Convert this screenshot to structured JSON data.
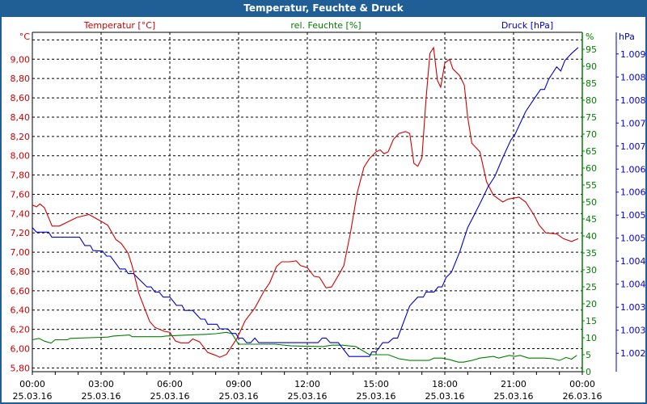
{
  "window": {
    "title": "Temperatur, Feuchte & Druck"
  },
  "colors": {
    "temperature": "#d00000",
    "humidity": "#008000",
    "pressure": "#0000d0",
    "titlebar": "#1f5f96"
  },
  "chart_data": {
    "type": "line",
    "title": "Temperatur, Feuchte & Druck",
    "xlabel": "",
    "x_unit": "hours since 25.03.16 00:00",
    "xlim": [
      0,
      24
    ],
    "x_ticks": [
      {
        "x": 0,
        "time": "00:00",
        "date": "25.03.16"
      },
      {
        "x": 3,
        "time": "03:00",
        "date": "25.03.16"
      },
      {
        "x": 6,
        "time": "06:00",
        "date": "25.03.16"
      },
      {
        "x": 9,
        "time": "09:00",
        "date": "25.03.16"
      },
      {
        "x": 12,
        "time": "12:00",
        "date": "25.03.16"
      },
      {
        "x": 15,
        "time": "15:00",
        "date": "25.03.16"
      },
      {
        "x": 18,
        "time": "18:00",
        "date": "25.03.16"
      },
      {
        "x": 21,
        "time": "21:00",
        "date": "25.03.16"
      },
      {
        "x": 24,
        "time": "00:00",
        "date": "26.03.16"
      }
    ],
    "grid": true,
    "axes": {
      "temperature": {
        "label": "°C",
        "legend": "Temperatur [°C]",
        "ylim": [
          5.761,
          9.279
        ],
        "ticks": [
          {
            "v": 5.8,
            "t": "5,80"
          },
          {
            "v": 6.0,
            "t": "6,00"
          },
          {
            "v": 6.2,
            "t": "6,20"
          },
          {
            "v": 6.4,
            "t": "6,40"
          },
          {
            "v": 6.6,
            "t": "6,60"
          },
          {
            "v": 6.8,
            "t": "6,80"
          },
          {
            "v": 7.0,
            "t": "7,00"
          },
          {
            "v": 7.2,
            "t": "7,20"
          },
          {
            "v": 7.4,
            "t": "7,40"
          },
          {
            "v": 7.6,
            "t": "7,60"
          },
          {
            "v": 7.8,
            "t": "7,80"
          },
          {
            "v": 8.0,
            "t": "8,00"
          },
          {
            "v": 8.2,
            "t": "8,20"
          },
          {
            "v": 8.4,
            "t": "8,40"
          },
          {
            "v": 8.6,
            "t": "8,60"
          },
          {
            "v": 8.8,
            "t": "8,80"
          },
          {
            "v": 9.0,
            "t": "9,00"
          }
        ]
      },
      "humidity": {
        "label": "%",
        "legend": "rel. Feuchte [%]",
        "ylim": [
          0,
          100
        ],
        "ticks": [
          {
            "v": 0,
            "t": "0"
          },
          {
            "v": 5,
            "t": "5"
          },
          {
            "v": 10,
            "t": "10"
          },
          {
            "v": 15,
            "t": "15"
          },
          {
            "v": 20,
            "t": "20"
          },
          {
            "v": 25,
            "t": "25"
          },
          {
            "v": 30,
            "t": "30"
          },
          {
            "v": 35,
            "t": "35"
          },
          {
            "v": 40,
            "t": "40"
          },
          {
            "v": 45,
            "t": "45"
          },
          {
            "v": 50,
            "t": "50"
          },
          {
            "v": 55,
            "t": "55"
          },
          {
            "v": 60,
            "t": "60"
          },
          {
            "v": 65,
            "t": "65"
          },
          {
            "v": 70,
            "t": "70"
          },
          {
            "v": 75,
            "t": "75"
          },
          {
            "v": 80,
            "t": "80"
          },
          {
            "v": 85,
            "t": "85"
          },
          {
            "v": 90,
            "t": "90"
          },
          {
            "v": 95,
            "t": "95"
          }
        ]
      },
      "pressure": {
        "label": "hPa",
        "legend": "Druck [hPa]",
        "ylim": [
          1.0021,
          1.00947
        ],
        "ticks": [
          {
            "v": 1.0025,
            "t": "1.002"
          },
          {
            "v": 1.003,
            "t": "1.003"
          },
          {
            "v": 1.0035,
            "t": "1.003"
          },
          {
            "v": 1.004,
            "t": "1.004"
          },
          {
            "v": 1.0045,
            "t": "1.004"
          },
          {
            "v": 1.005,
            "t": "1.005"
          },
          {
            "v": 1.0055,
            "t": "1.005"
          },
          {
            "v": 1.006,
            "t": "1.006"
          },
          {
            "v": 1.0065,
            "t": "1.006"
          },
          {
            "v": 1.007,
            "t": "1.007"
          },
          {
            "v": 1.0075,
            "t": "1.007"
          },
          {
            "v": 1.008,
            "t": "1.008"
          },
          {
            "v": 1.0085,
            "t": "1.008"
          },
          {
            "v": 1.009,
            "t": "1.009"
          }
        ]
      }
    },
    "series": [
      {
        "name": "Temperatur [°C]",
        "axis": "temperature",
        "x": [
          0,
          0.18,
          0.33,
          0.53,
          0.86,
          1.18,
          1.94,
          2.47,
          3.0,
          3.29,
          3.65,
          3.88,
          4.18,
          4.35,
          4.65,
          5.12,
          5.35,
          5.76,
          6.0,
          6.24,
          6.47,
          6.82,
          7.0,
          7.3,
          7.65,
          8.0,
          8.18,
          8.47,
          8.94,
          9.29,
          9.71,
          10.12,
          10.35,
          10.65,
          10.88,
          11.24,
          11.51,
          11.71,
          12.0,
          12.29,
          12.53,
          12.82,
          13.06,
          13.41,
          13.59,
          13.88,
          14.18,
          14.47,
          14.71,
          15.0,
          15.18,
          15.35,
          15.53,
          15.76,
          16.0,
          16.29,
          16.47,
          16.65,
          16.82,
          17.0,
          17.18,
          17.35,
          17.51,
          17.68,
          17.82,
          18.0,
          18.21,
          18.35,
          18.65,
          18.85,
          19.0,
          19.18,
          19.53,
          19.82,
          20.12,
          20.53,
          20.76,
          21.24,
          21.53,
          21.88,
          22.12,
          22.41,
          22.88,
          23.18,
          23.53,
          23.82
        ],
        "y": [
          7.49,
          7.47,
          7.5,
          7.46,
          7.27,
          7.27,
          7.36,
          7.39,
          7.32,
          7.28,
          7.13,
          7.09,
          6.99,
          6.86,
          6.57,
          6.28,
          6.22,
          6.18,
          6.17,
          6.08,
          6.06,
          6.06,
          6.1,
          6.07,
          5.96,
          5.93,
          5.91,
          5.94,
          6.11,
          6.29,
          6.42,
          6.6,
          6.68,
          6.85,
          6.9,
          6.9,
          6.91,
          6.86,
          6.84,
          6.75,
          6.74,
          6.63,
          6.64,
          6.78,
          6.86,
          7.2,
          7.62,
          7.88,
          7.97,
          8.04,
          8.06,
          8.02,
          8.04,
          8.17,
          8.23,
          8.25,
          8.23,
          7.92,
          7.89,
          7.98,
          8.59,
          9.06,
          9.12,
          8.78,
          8.71,
          8.96,
          9.0,
          8.9,
          8.83,
          8.73,
          8.4,
          8.13,
          8.04,
          7.73,
          7.59,
          7.52,
          7.55,
          7.57,
          7.52,
          7.39,
          7.28,
          7.2,
          7.19,
          7.14,
          7.11,
          7.14
        ]
      },
      {
        "name": "rel. Feuchte [%]",
        "axis": "humidity",
        "x": [
          0,
          0.29,
          0.53,
          0.82,
          1.0,
          1.53,
          1.65,
          3.29,
          3.53,
          4.24,
          4.35,
          5.65,
          5.82,
          6.82,
          7.53,
          8.0,
          8.47,
          8.71,
          9.0,
          10.59,
          11.3,
          12.7,
          13.06,
          13.53,
          14.12,
          14.71,
          15.53,
          16.0,
          16.47,
          17.3,
          17.53,
          17.88,
          18.24,
          18.59,
          18.82,
          19.18,
          19.53,
          20.12,
          20.35,
          20.82,
          21.06,
          21.29,
          21.65,
          22.35,
          22.71,
          23.0,
          23.29,
          23.53,
          23.76
        ],
        "y": [
          9.4,
          9.8,
          9.0,
          8.4,
          9.4,
          9.4,
          9.8,
          10.2,
          10.5,
          10.8,
          10.3,
          10.3,
          10.5,
          10.8,
          11.0,
          11.2,
          11.6,
          11.2,
          8.1,
          8.1,
          7.6,
          7.4,
          7.8,
          7.8,
          7.4,
          5.0,
          5.0,
          3.8,
          3.3,
          3.3,
          4.0,
          4.0,
          3.5,
          2.8,
          2.8,
          3.3,
          4.0,
          4.5,
          4.0,
          4.8,
          4.5,
          4.8,
          4.0,
          4.0,
          3.8,
          3.3,
          4.2,
          3.7,
          4.8
        ]
      },
      {
        "name": "Druck [hPa]",
        "axis": "pressure",
        "x": [
          0,
          0.18,
          0.71,
          0.85,
          2.06,
          2.29,
          2.53,
          2.65,
          3.06,
          3.24,
          3.41,
          3.82,
          4.06,
          4.18,
          4.41,
          5.0,
          5.18,
          5.35,
          5.53,
          5.71,
          6.0,
          6.29,
          6.53,
          6.65,
          7.0,
          7.35,
          7.53,
          7.65,
          8.06,
          8.18,
          8.53,
          8.71,
          8.88,
          9.0,
          9.18,
          9.35,
          9.53,
          9.71,
          9.88,
          12.47,
          12.65,
          12.82,
          13.0,
          13.35,
          13.82,
          14.71,
          14.82,
          15.0,
          15.29,
          15.53,
          15.76,
          15.94,
          16.47,
          16.82,
          17.06,
          17.18,
          17.53,
          17.71,
          17.88,
          18.06,
          18.29,
          18.65,
          19.0,
          19.24,
          19.59,
          19.88,
          20.18,
          20.53,
          20.88,
          21.06,
          21.53,
          21.88,
          22.18,
          22.35,
          22.53,
          22.88,
          23.06,
          23.24,
          23.53,
          23.82
        ],
        "y": [
          1.00523,
          1.00513,
          1.00513,
          1.00502,
          1.00502,
          1.00484,
          1.00484,
          1.00473,
          1.00472,
          1.00461,
          1.00461,
          1.00433,
          1.00433,
          1.00423,
          1.00423,
          1.00394,
          1.00394,
          1.00383,
          1.00383,
          1.00372,
          1.00372,
          1.00354,
          1.00354,
          1.00343,
          1.00343,
          1.00324,
          1.00324,
          1.00313,
          1.00313,
          1.00303,
          1.00303,
          1.00293,
          1.00293,
          1.00283,
          1.00283,
          1.00273,
          1.00273,
          1.00283,
          1.00273,
          1.00273,
          1.00283,
          1.00283,
          1.00273,
          1.00273,
          1.00243,
          1.00243,
          1.00253,
          1.00253,
          1.00273,
          1.00273,
          1.00283,
          1.00283,
          1.00353,
          1.00372,
          1.00372,
          1.00383,
          1.00383,
          1.00394,
          1.00394,
          1.00415,
          1.00426,
          1.0047,
          1.00523,
          1.00546,
          1.00581,
          1.00611,
          1.00634,
          1.00675,
          1.00713,
          1.00725,
          1.00775,
          1.00801,
          1.00823,
          1.00823,
          1.00845,
          1.00872,
          1.00863,
          1.00886,
          1.00901,
          1.00914
        ]
      }
    ]
  }
}
